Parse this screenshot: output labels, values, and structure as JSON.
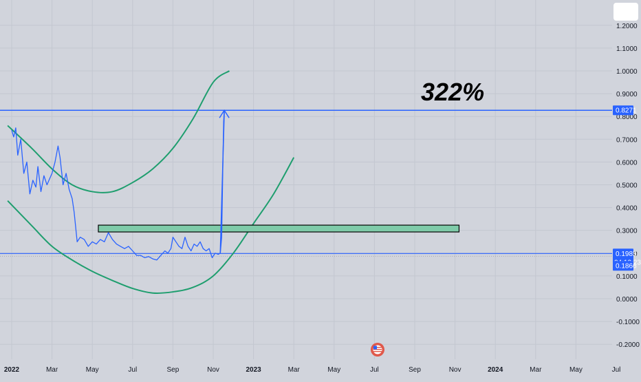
{
  "chart_data": {
    "type": "line",
    "title": "",
    "xlabel": "",
    "ylabel": "",
    "x_tick_labels": [
      "2022",
      "Mar",
      "May",
      "Jul",
      "Sep",
      "Nov",
      "2023",
      "Mar",
      "May",
      "Jul",
      "Sep",
      "Nov",
      "2024",
      "Mar",
      "May",
      "Jul"
    ],
    "x_tick_bold": [
      true,
      false,
      false,
      false,
      false,
      false,
      true,
      false,
      false,
      false,
      false,
      false,
      true,
      false,
      false,
      false
    ],
    "y_tick_labels": [
      "1.2000",
      "1.1000",
      "1.0000",
      "0.9000",
      "0.8000",
      "0.7000",
      "0.6000",
      "0.5000",
      "0.4000",
      "0.3000",
      "0.2000",
      "0.1000",
      "0.0000",
      "-0.1000",
      "-0.2000"
    ],
    "ylim": [
      -0.23,
      1.32
    ],
    "series": [
      {
        "color": "#2962ff",
        "points": [
          [
            0,
            0.74
          ],
          [
            0.1,
            0.71
          ],
          [
            0.2,
            0.75
          ],
          [
            0.3,
            0.63
          ],
          [
            0.45,
            0.7
          ],
          [
            0.6,
            0.55
          ],
          [
            0.75,
            0.6
          ],
          [
            0.9,
            0.46
          ],
          [
            1.05,
            0.52
          ],
          [
            1.2,
            0.49
          ],
          [
            1.3,
            0.58
          ],
          [
            1.45,
            0.47
          ],
          [
            1.6,
            0.54
          ],
          [
            1.75,
            0.5
          ],
          [
            1.85,
            0.52
          ],
          [
            2.0,
            0.55
          ],
          [
            2.15,
            0.6
          ],
          [
            2.3,
            0.67
          ],
          [
            2.4,
            0.62
          ],
          [
            2.55,
            0.5
          ],
          [
            2.7,
            0.55
          ],
          [
            2.85,
            0.48
          ],
          [
            3.0,
            0.44
          ],
          [
            3.1,
            0.38
          ],
          [
            3.25,
            0.25
          ],
          [
            3.4,
            0.27
          ],
          [
            3.6,
            0.26
          ],
          [
            3.8,
            0.23
          ],
          [
            4.0,
            0.25
          ],
          [
            4.2,
            0.24
          ],
          [
            4.4,
            0.26
          ],
          [
            4.6,
            0.25
          ],
          [
            4.8,
            0.29
          ],
          [
            5.0,
            0.26
          ],
          [
            5.2,
            0.24
          ],
          [
            5.4,
            0.23
          ],
          [
            5.6,
            0.22
          ],
          [
            5.8,
            0.23
          ],
          [
            6.0,
            0.21
          ],
          [
            6.2,
            0.19
          ],
          [
            6.4,
            0.19
          ],
          [
            6.6,
            0.18
          ],
          [
            6.8,
            0.185
          ],
          [
            7.0,
            0.175
          ],
          [
            7.2,
            0.17
          ],
          [
            7.4,
            0.19
          ],
          [
            7.6,
            0.21
          ],
          [
            7.75,
            0.2
          ],
          [
            7.9,
            0.22
          ],
          [
            8.0,
            0.27
          ],
          [
            8.15,
            0.25
          ],
          [
            8.3,
            0.23
          ],
          [
            8.45,
            0.22
          ],
          [
            8.6,
            0.27
          ],
          [
            8.75,
            0.23
          ],
          [
            8.9,
            0.21
          ],
          [
            9.05,
            0.24
          ],
          [
            9.2,
            0.23
          ],
          [
            9.35,
            0.25
          ],
          [
            9.5,
            0.22
          ],
          [
            9.65,
            0.21
          ],
          [
            9.8,
            0.22
          ],
          [
            9.95,
            0.18
          ],
          [
            10.1,
            0.2
          ],
          [
            10.25,
            0.195
          ],
          [
            10.35,
            0.2
          ],
          [
            10.42,
            0.27
          ],
          [
            10.48,
            0.6
          ],
          [
            10.52,
            0.78
          ],
          [
            10.55,
            0.8271
          ]
        ]
      }
    ],
    "annotations": {
      "gain_label": "322%",
      "price_level_top": "0.8271",
      "price_level_current": "0.1985",
      "countdown": "04:12:23",
      "price_level_low": "0.1866",
      "rectangle_y_range": [
        0.293,
        0.323
      ],
      "rectangle_color": "#7fcba9",
      "arrow_from": [
        10.35,
        0.2
      ],
      "arrow_to": [
        10.55,
        0.8271
      ],
      "upper_curve_points": [
        [
          -0.2,
          0.76
        ],
        [
          1,
          0.66
        ],
        [
          2,
          0.57
        ],
        [
          3,
          0.5
        ],
        [
          4,
          0.47
        ],
        [
          5,
          0.47
        ],
        [
          6,
          0.51
        ],
        [
          7,
          0.57
        ],
        [
          8,
          0.66
        ],
        [
          9,
          0.79
        ],
        [
          10,
          0.95
        ],
        [
          10.8,
          1.0
        ]
      ],
      "lower_curve_points": [
        [
          -0.2,
          0.43
        ],
        [
          1,
          0.32
        ],
        [
          2,
          0.23
        ],
        [
          3,
          0.17
        ],
        [
          4,
          0.12
        ],
        [
          5,
          0.08
        ],
        [
          6,
          0.045
        ],
        [
          7,
          0.025
        ],
        [
          8,
          0.03
        ],
        [
          9,
          0.05
        ],
        [
          10,
          0.1
        ],
        [
          11,
          0.2
        ],
        [
          12,
          0.33
        ],
        [
          13,
          0.46
        ],
        [
          14,
          0.62
        ]
      ]
    },
    "colors": {
      "background": "#d1d4dc",
      "price_line": "#2962ff",
      "curves": "#1e9e6e",
      "badge": "#2962ff"
    }
  }
}
